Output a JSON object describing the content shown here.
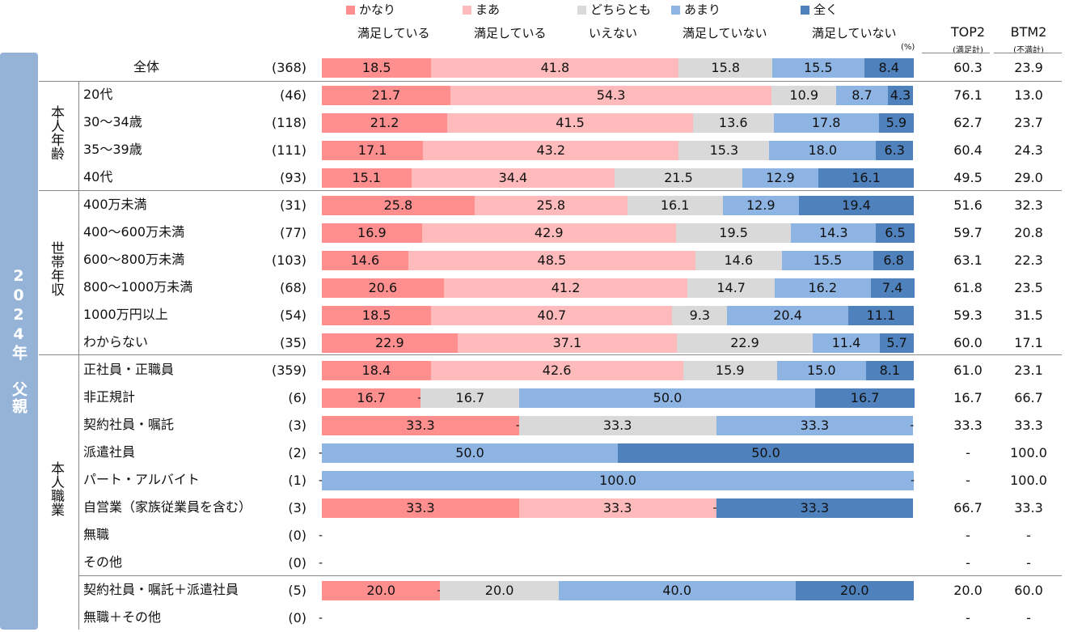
{
  "side_label": "2024年 父親",
  "unit": "(%)",
  "colors": [
    "#FF8F8F",
    "#FFBBBB",
    "#D9D9D9",
    "#8EB4E3",
    "#4F81BD"
  ],
  "legend": [
    {
      "line1": "かなり",
      "line2": "満足している"
    },
    {
      "line1": "まあ",
      "line2": "満足している"
    },
    {
      "line1": "どちらとも",
      "line2": "いえない"
    },
    {
      "line1": "あまり",
      "line2": "満足していない"
    },
    {
      "line1": "全く",
      "line2": "満足していない"
    }
  ],
  "top2": {
    "title": "TOP2",
    "sub": "(満足計)"
  },
  "btm2": {
    "title": "BTM2",
    "sub": "(不満計)"
  },
  "groups": [
    "本人年齢",
    "世帯年収",
    "本人職業"
  ],
  "chart_data": {
    "type": "bar",
    "stacked": true,
    "orientation": "horizontal",
    "xlim": [
      0,
      100
    ],
    "series": [
      "かなり満足している",
      "まあ満足している",
      "どちらともいえない",
      "あまり満足していない",
      "全く満足していない"
    ],
    "rows": [
      {
        "label": "全体",
        "n": "(368)",
        "values": [
          18.5,
          41.8,
          15.8,
          15.5,
          8.4
        ],
        "top2": "60.3",
        "btm2": "23.9"
      },
      {
        "label": "20代",
        "n": "(46)",
        "values": [
          21.7,
          54.3,
          10.9,
          8.7,
          4.3
        ],
        "top2": "76.1",
        "btm2": "13.0"
      },
      {
        "label": "30～34歳",
        "n": "(118)",
        "values": [
          21.2,
          41.5,
          13.6,
          17.8,
          5.9
        ],
        "top2": "62.7",
        "btm2": "23.7"
      },
      {
        "label": "35～39歳",
        "n": "(111)",
        "values": [
          17.1,
          43.2,
          15.3,
          18.0,
          6.3
        ],
        "top2": "60.4",
        "btm2": "24.3"
      },
      {
        "label": "40代",
        "n": "(93)",
        "values": [
          15.1,
          34.4,
          21.5,
          12.9,
          16.1
        ],
        "top2": "49.5",
        "btm2": "29.0"
      },
      {
        "label": "400万未満",
        "n": "(31)",
        "values": [
          25.8,
          25.8,
          16.1,
          12.9,
          19.4
        ],
        "top2": "51.6",
        "btm2": "32.3"
      },
      {
        "label": "400～600万未満",
        "n": "(77)",
        "values": [
          16.9,
          42.9,
          19.5,
          14.3,
          6.5
        ],
        "top2": "59.7",
        "btm2": "20.8"
      },
      {
        "label": "600～800万未満",
        "n": "(103)",
        "values": [
          14.6,
          48.5,
          14.6,
          15.5,
          6.8
        ],
        "top2": "63.1",
        "btm2": "22.3"
      },
      {
        "label": "800～1000万未満",
        "n": "(68)",
        "values": [
          20.6,
          41.2,
          14.7,
          16.2,
          7.4
        ],
        "top2": "61.8",
        "btm2": "23.5"
      },
      {
        "label": "1000万円以上",
        "n": "(54)",
        "values": [
          18.5,
          40.7,
          9.3,
          20.4,
          11.1
        ],
        "top2": "59.3",
        "btm2": "31.5"
      },
      {
        "label": "わからない",
        "n": "(35)",
        "values": [
          22.9,
          37.1,
          22.9,
          11.4,
          5.7
        ],
        "top2": "60.0",
        "btm2": "17.1"
      },
      {
        "label": "正社員・正職員",
        "n": "(359)",
        "values": [
          18.4,
          42.6,
          15.9,
          15.0,
          8.1
        ],
        "top2": "61.0",
        "btm2": "23.1"
      },
      {
        "label": "非正規計",
        "n": "(6)",
        "values": [
          16.7,
          0,
          16.7,
          50.0,
          16.7
        ],
        "top2": "16.7",
        "btm2": "66.7"
      },
      {
        "label": "契約社員・嘱託",
        "n": "(3)",
        "values": [
          33.3,
          0,
          33.3,
          33.3,
          0
        ],
        "top2": "33.3",
        "btm2": "33.3"
      },
      {
        "label": "派遣社員",
        "n": "(2)",
        "values": [
          0,
          0,
          0,
          50.0,
          50.0
        ],
        "top2": "-",
        "btm2": "100.0"
      },
      {
        "label": "パート・アルバイト",
        "n": "(1)",
        "values": [
          0,
          0,
          0,
          100.0,
          0
        ],
        "top2": "-",
        "btm2": "100.0"
      },
      {
        "label": "自営業（家族従業員を含む）",
        "n": "(3)",
        "values": [
          33.3,
          33.3,
          0,
          0,
          33.3
        ],
        "top2": "66.7",
        "btm2": "33.3"
      },
      {
        "label": "無職",
        "n": "(0)",
        "values": null,
        "top2": "-",
        "btm2": "-"
      },
      {
        "label": "その他",
        "n": "(0)",
        "values": null,
        "top2": "-",
        "btm2": "-"
      },
      {
        "label": "契約社員・嘱託＋派遣社員",
        "n": "(5)",
        "values": [
          20.0,
          0,
          20.0,
          40.0,
          20.0
        ],
        "top2": "20.0",
        "btm2": "60.0"
      },
      {
        "label": "無職＋その他",
        "n": "(0)",
        "values": null,
        "top2": "-",
        "btm2": "-"
      }
    ]
  }
}
